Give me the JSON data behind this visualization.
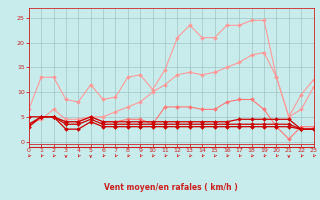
{
  "x": [
    0,
    1,
    2,
    3,
    4,
    5,
    6,
    7,
    8,
    9,
    10,
    11,
    12,
    13,
    14,
    15,
    16,
    17,
    18,
    19,
    20,
    21,
    22,
    23
  ],
  "series": [
    {
      "color": "#ff9999",
      "marker": "D",
      "markersize": 2.0,
      "linewidth": 0.8,
      "values": [
        6.5,
        13,
        13,
        8.5,
        8,
        11.5,
        8.5,
        9,
        13,
        13.5,
        10.5,
        14.5,
        21,
        23.5,
        21,
        21,
        23.5,
        23.5,
        24.5,
        24.5,
        13,
        5,
        6.5,
        11
      ]
    },
    {
      "color": "#ff9999",
      "marker": "D",
      "markersize": 2.0,
      "linewidth": 0.8,
      "values": [
        3.5,
        4.5,
        6.5,
        4.5,
        4.5,
        5,
        5,
        6,
        7,
        8,
        10,
        11.5,
        13.5,
        14,
        13.5,
        14,
        15,
        16,
        17.5,
        18,
        13,
        5,
        9.5,
        12.5
      ]
    },
    {
      "color": "#ff7777",
      "marker": "D",
      "markersize": 2.0,
      "linewidth": 0.8,
      "values": [
        3,
        5,
        5,
        4,
        4,
        5,
        4,
        4,
        4.5,
        4.5,
        3.5,
        7,
        7,
        7,
        6.5,
        6.5,
        8,
        8.5,
        8.5,
        6.5,
        3,
        0.5,
        3,
        3
      ]
    },
    {
      "color": "#cc0000",
      "marker": "D",
      "markersize": 2.0,
      "linewidth": 0.9,
      "values": [
        3,
        5,
        5,
        2.5,
        2.5,
        4,
        3,
        3,
        3,
        3,
        3,
        3,
        3,
        3,
        3,
        3,
        3,
        3,
        3,
        3,
        3,
        3,
        2.5,
        2.5
      ]
    },
    {
      "color": "#cc0000",
      "marker": "D",
      "markersize": 2.0,
      "linewidth": 0.9,
      "values": [
        3.5,
        5,
        5,
        3.5,
        3.5,
        4.5,
        3.5,
        3.5,
        3.5,
        3.5,
        3.5,
        3.5,
        3.5,
        3.5,
        3.5,
        3.5,
        3.5,
        3.5,
        3.5,
        3.5,
        3.5,
        3.5,
        2.5,
        2.5
      ]
    },
    {
      "color": "#cc0000",
      "marker": "D",
      "markersize": 2.0,
      "linewidth": 0.9,
      "values": [
        5,
        5,
        5,
        4,
        4,
        5,
        4,
        4,
        4,
        4,
        4,
        4,
        4,
        4,
        4,
        4,
        4,
        4.5,
        4.5,
        4.5,
        4.5,
        4.5,
        2.5,
        2.5
      ]
    }
  ],
  "xlabel": "Vent moyen/en rafales ( km/h )",
  "xlim": [
    0,
    23
  ],
  "ylim": [
    -0.5,
    27
  ],
  "yticks": [
    0,
    5,
    10,
    15,
    20,
    25
  ],
  "xticks": [
    0,
    1,
    2,
    3,
    4,
    5,
    6,
    7,
    8,
    9,
    10,
    11,
    12,
    13,
    14,
    15,
    16,
    17,
    18,
    19,
    20,
    21,
    22,
    23
  ],
  "bg_color": "#c8ecec",
  "grid_color": "#99bbbb",
  "axis_color": "#cc2222",
  "tick_color": "#cc2222",
  "label_color": "#cc2222"
}
